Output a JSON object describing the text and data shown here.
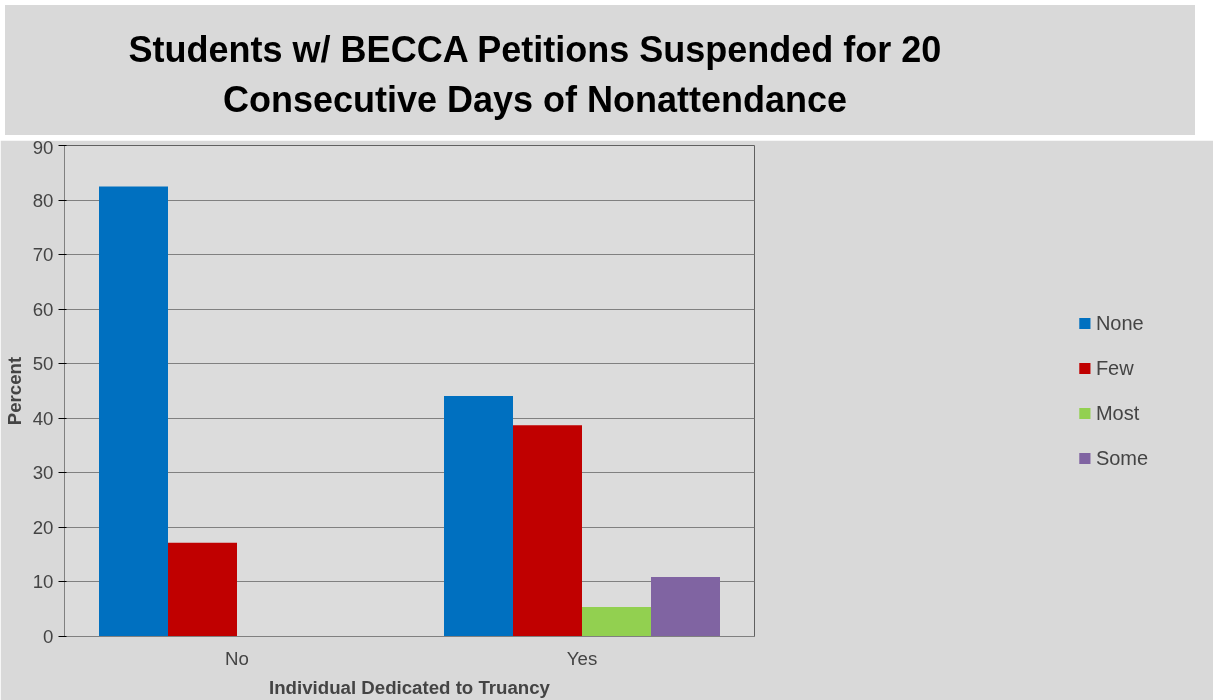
{
  "chart_data": {
    "type": "bar",
    "title": "Students w/ BECCA Petitions Suspended for 20 Consecutive Days of Nonattendance",
    "xlabel": "Individual Dedicated to Truancy",
    "ylabel": "Percent",
    "categories": [
      "No",
      "Yes"
    ],
    "series": [
      {
        "name": "None",
        "color": "#0070c0",
        "values": [
          82.5,
          44.1
        ]
      },
      {
        "name": "Few",
        "color": "#c00000",
        "values": [
          17.2,
          38.7
        ]
      },
      {
        "name": "Most",
        "color": "#92d050",
        "values": [
          null,
          5.4
        ]
      },
      {
        "name": "Some",
        "color": "#8064a2",
        "values": [
          null,
          10.9
        ]
      }
    ],
    "ylim": [
      0,
      90
    ],
    "yticks": [
      0,
      10,
      20,
      30,
      40,
      50,
      60,
      70,
      80,
      90
    ],
    "grid": "y",
    "legend": "right"
  }
}
